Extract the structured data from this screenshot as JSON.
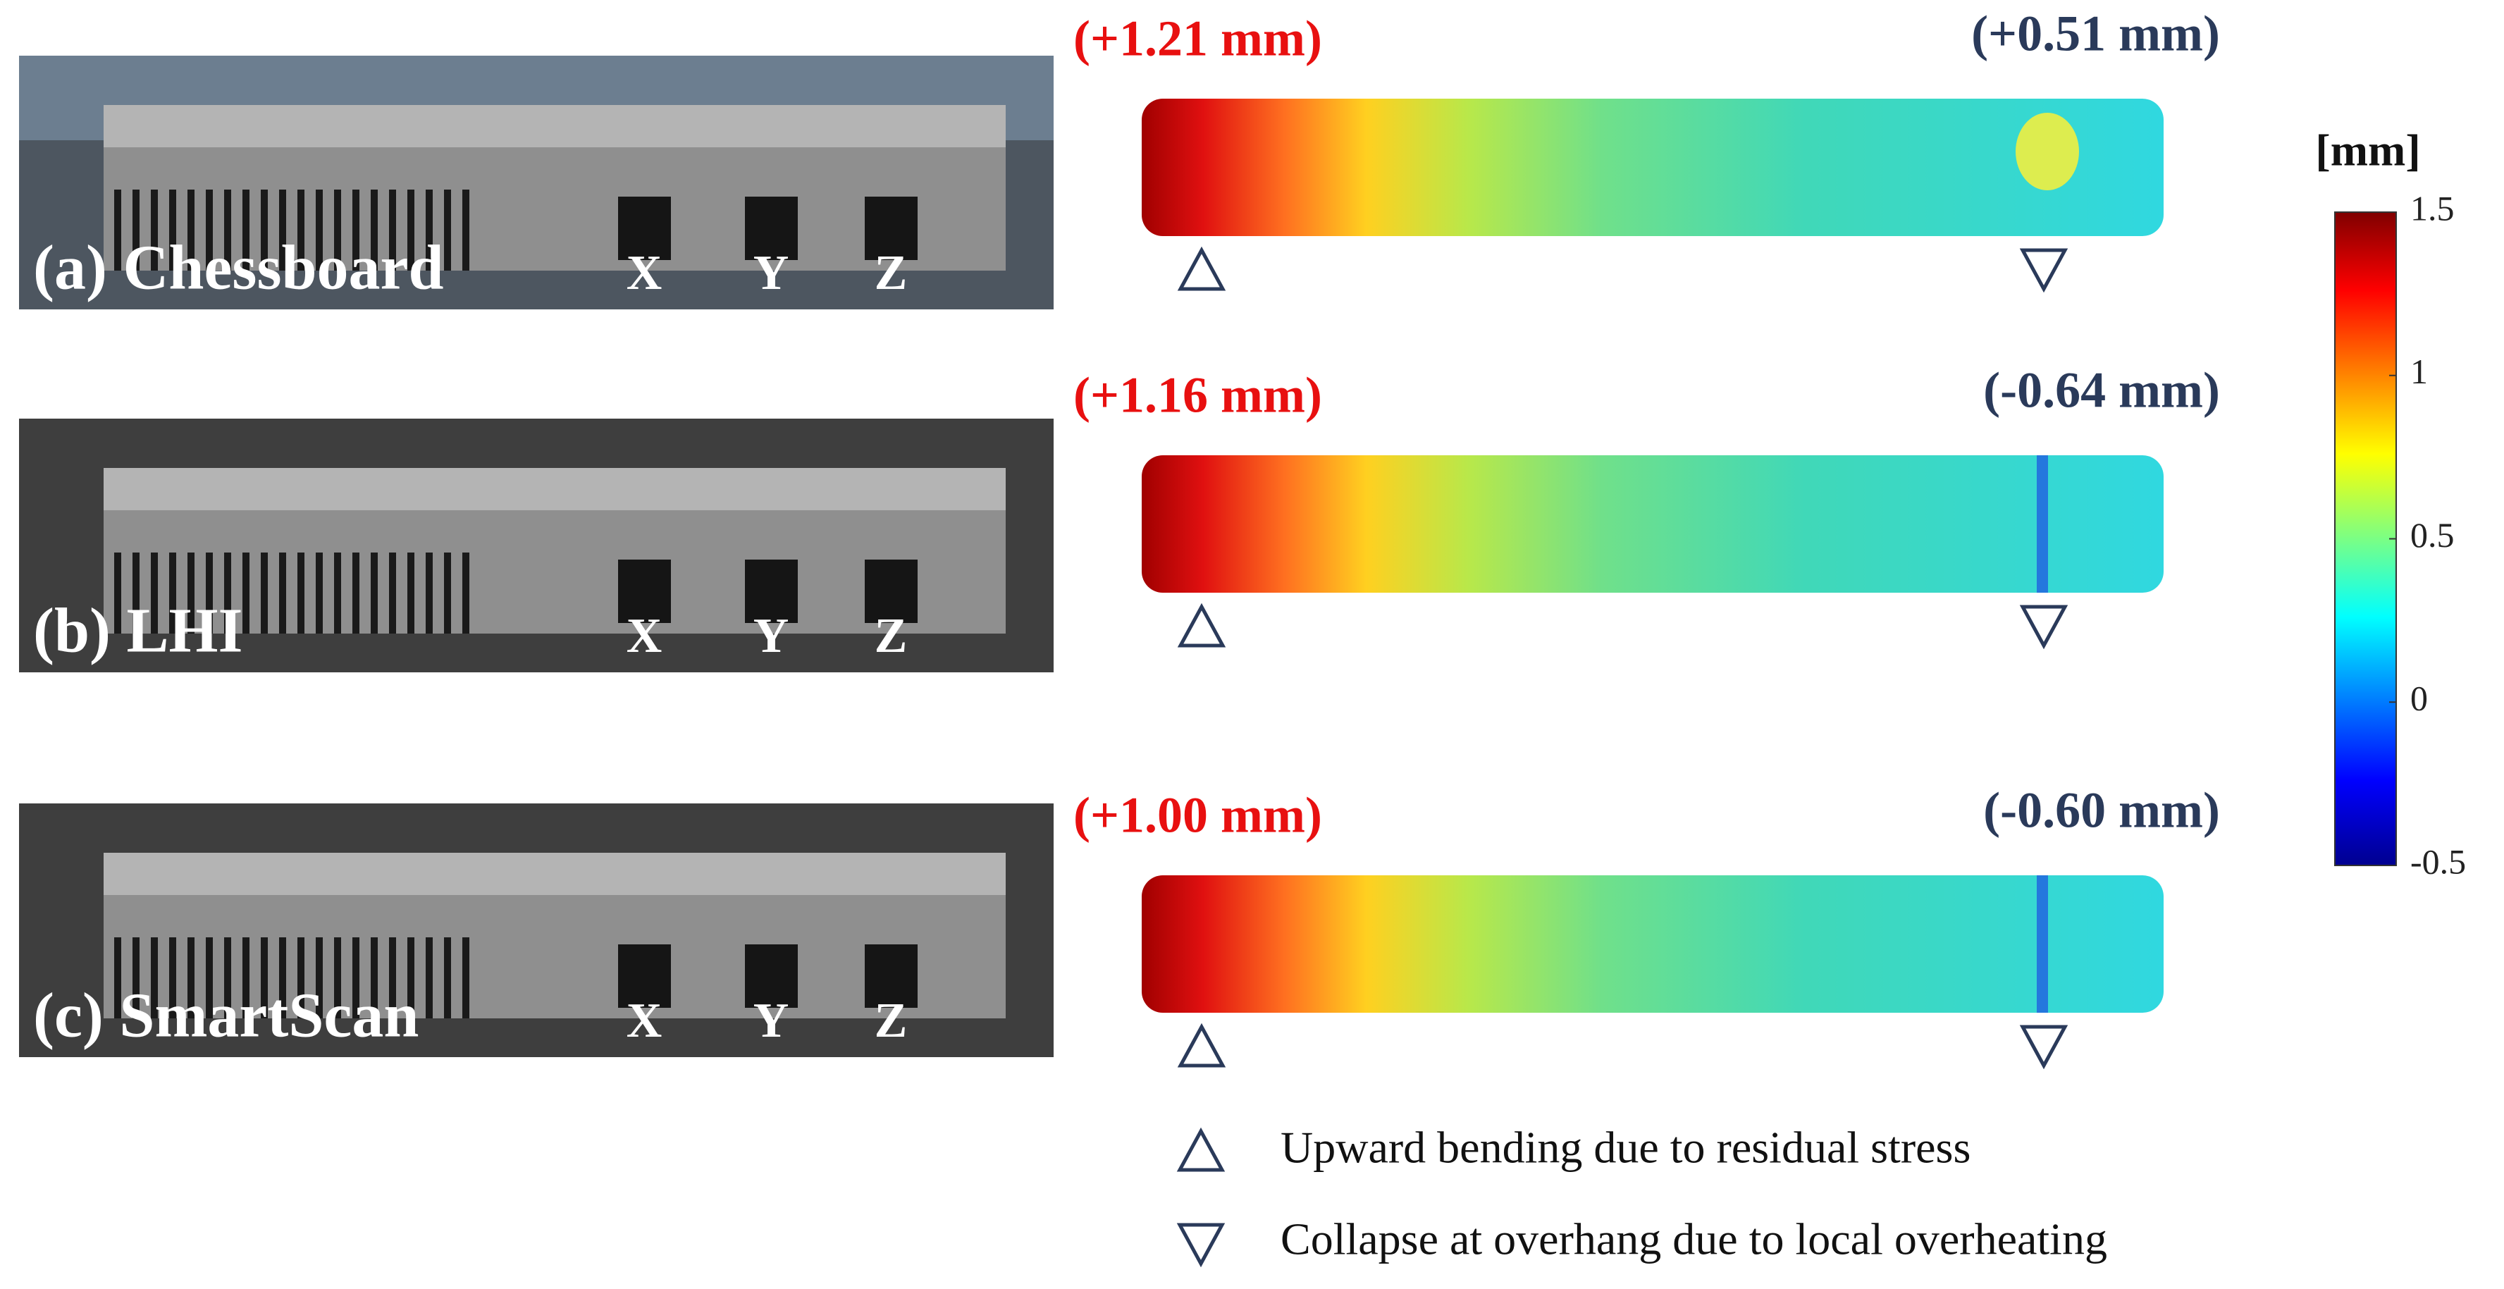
{
  "panels": [
    {
      "label": "(a) Chessboard",
      "holes": [
        "X",
        "Y",
        "Z"
      ],
      "max_annotation": "(+1.21 mm)",
      "overhang_annotation": "(+0.51 mm)"
    },
    {
      "label": "(b) LHI",
      "holes": [
        "X",
        "Y",
        "Z"
      ],
      "max_annotation": "(+1.16 mm)",
      "overhang_annotation": "(-0.64 mm)"
    },
    {
      "label": "(c) SmartScan",
      "holes": [
        "X",
        "Y",
        "Z"
      ],
      "max_annotation": "(+1.00 mm)",
      "overhang_annotation": "(-0.60 mm)"
    }
  ],
  "colorbar": {
    "label": "[mm]",
    "lim": [
      -0.5,
      1.5
    ],
    "ticks": [
      -0.5,
      0,
      0.5,
      1,
      1.5
    ]
  },
  "legend": [
    {
      "text": "Upward bending due to residual stress"
    },
    {
      "text": "Collapse at overhang due to local overheating"
    }
  ]
}
